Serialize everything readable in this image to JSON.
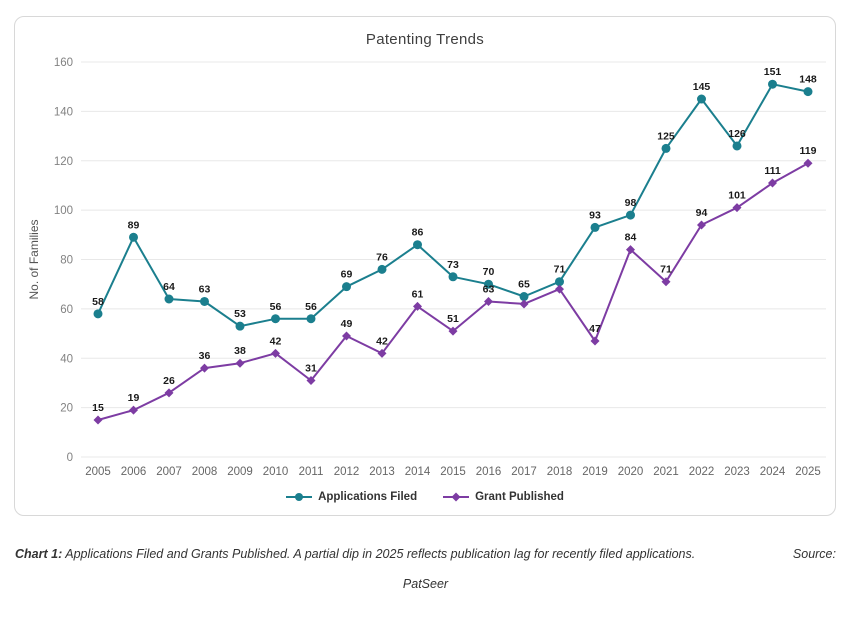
{
  "chart_data": {
    "type": "line",
    "title": "Patenting Trends",
    "xlabel": "",
    "ylabel": "No. of Families",
    "categories": [
      "2005",
      "2006",
      "2007",
      "2008",
      "2009",
      "2010",
      "2011",
      "2012",
      "2013",
      "2014",
      "2015",
      "2016",
      "2017",
      "2018",
      "2019",
      "2020",
      "2021",
      "2022",
      "2023",
      "2024",
      "2025"
    ],
    "ylim": [
      0,
      160
    ],
    "ytick_step": 20,
    "grid": true,
    "legend_position": "bottom",
    "series": [
      {
        "name": "Applications Filed",
        "color": "#1b7f8e",
        "marker": "circle",
        "values": [
          58,
          89,
          64,
          63,
          53,
          56,
          56,
          69,
          76,
          86,
          73,
          70,
          65,
          71,
          93,
          98,
          125,
          145,
          126,
          151,
          148
        ],
        "hidden_label_indices": []
      },
      {
        "name": "Grant Published",
        "color": "#7d3ca3",
        "marker": "diamond",
        "values": [
          15,
          19,
          26,
          36,
          38,
          42,
          31,
          49,
          42,
          61,
          51,
          63,
          62,
          68,
          47,
          84,
          71,
          94,
          101,
          111,
          119
        ],
        "hidden_label_indices": [
          12,
          13
        ]
      }
    ],
    "colors": {
      "gridline": "#e8e8e8",
      "y_tick_text": "#828282",
      "x_tick_text": "#666666",
      "data_label_text": "#1a1a1a",
      "axis_title_text": "#555555"
    }
  },
  "caption": {
    "prefix": "Chart 1:",
    "text": "Applications Filed and Grants Published. A partial dip in 2025 reflects publication lag for recently filed applications.",
    "source_label": "Source:",
    "source_value": "PatSeer"
  }
}
